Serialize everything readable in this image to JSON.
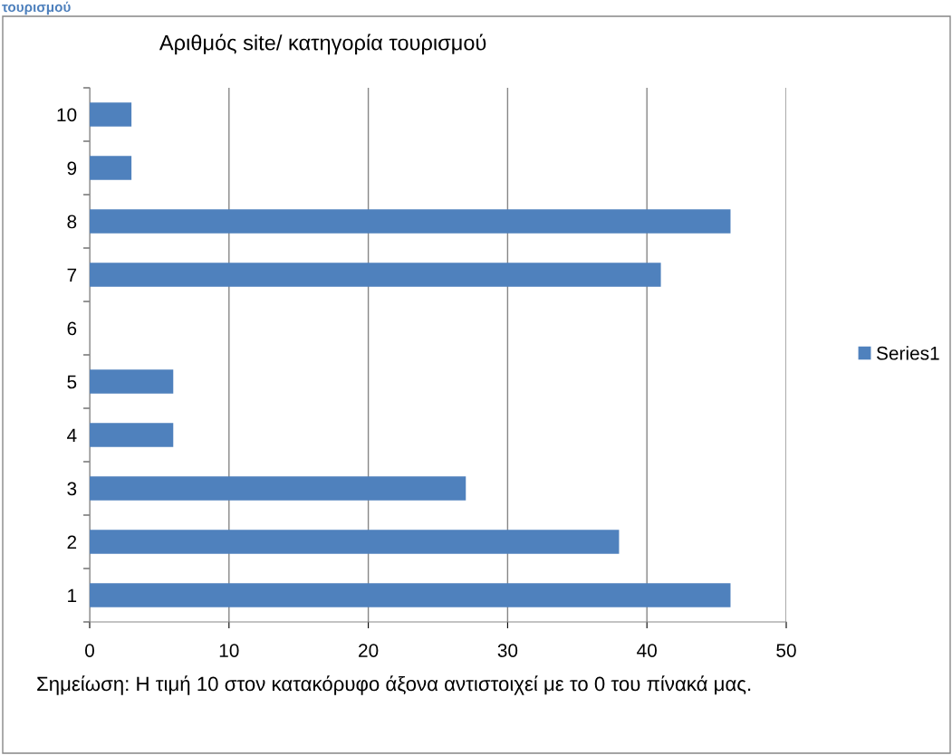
{
  "chart_data": {
    "type": "bar",
    "orientation": "horizontal",
    "title": "Αριθμός site/ κατηγορία τουρισμού",
    "categories": [
      "10",
      "9",
      "8",
      "7",
      "6",
      "5",
      "4",
      "3",
      "2",
      "1"
    ],
    "series": [
      {
        "name": "Series1",
        "color": "#4f81bd",
        "values": [
          3,
          3,
          46,
          41,
          0,
          6,
          6,
          27,
          38,
          46
        ]
      }
    ],
    "xlim": [
      0,
      50
    ],
    "xticks": [
      0,
      10,
      20,
      30,
      40,
      50
    ],
    "grid": "x",
    "legend": "right",
    "annotations": [
      "τουρισμού",
      "Σημείωση: Η τιμή 10 στον κατακόρυφο άξονα αντιστοιχεί με το 0 του πίνακά μας."
    ]
  }
}
